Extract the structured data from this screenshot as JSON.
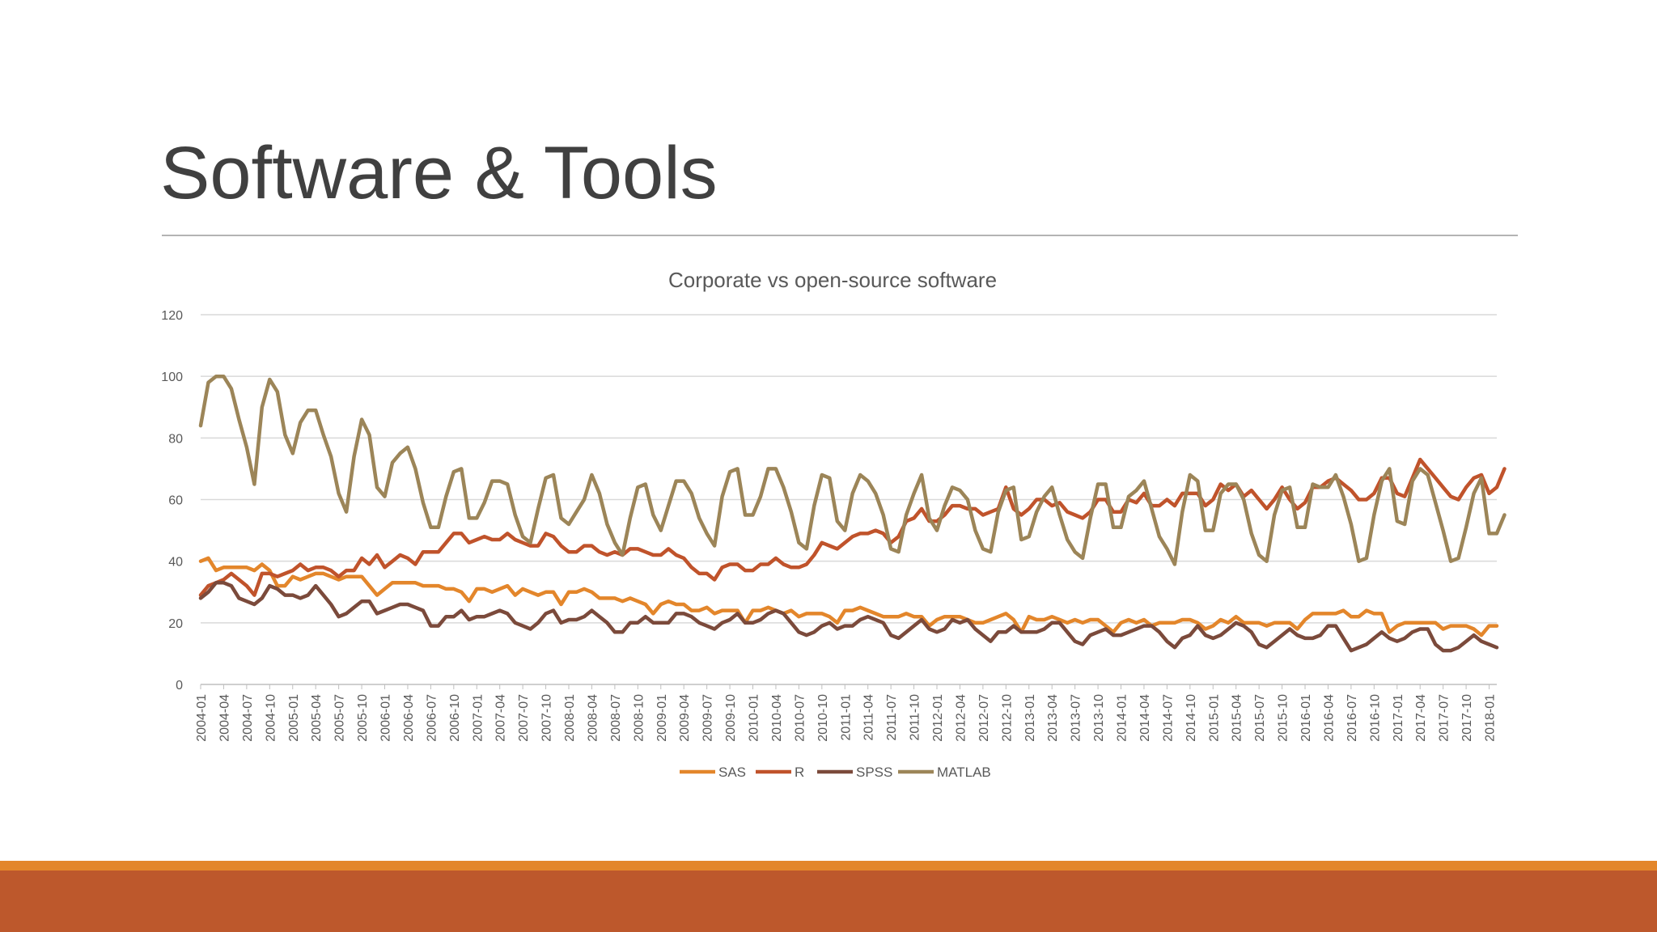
{
  "slide": {
    "title": "Software & Tools",
    "accent_light": "#E3862B",
    "accent_dark": "#BD582C"
  },
  "chart_data": {
    "type": "line",
    "title": "Corporate vs open-source software",
    "xlabel": "",
    "ylabel": "",
    "ylim": [
      0,
      120
    ],
    "yticks": [
      0,
      20,
      40,
      60,
      80,
      100,
      120
    ],
    "grid": true,
    "legend_position": "bottom",
    "x_start": "2004-01",
    "x_end": "2018-03",
    "x_tick_labels": [
      "2004-01",
      "2004-04",
      "2004-07",
      "2004-10",
      "2005-01",
      "2005-04",
      "2005-07",
      "2005-10",
      "2006-01",
      "2006-04",
      "2006-07",
      "2006-10",
      "2007-01",
      "2007-04",
      "2007-07",
      "2007-10",
      "2008-01",
      "2008-04",
      "2008-07",
      "2008-10",
      "2009-01",
      "2009-04",
      "2009-07",
      "2009-10",
      "2010-01",
      "2010-04",
      "2010-07",
      "2010-10",
      "2011-01",
      "2011-04",
      "2011-07",
      "2011-10",
      "2012-01",
      "2012-04",
      "2012-07",
      "2012-10",
      "2013-01",
      "2013-04",
      "2013-07",
      "2013-10",
      "2014-01",
      "2014-04",
      "2014-07",
      "2014-10",
      "2015-01",
      "2015-04",
      "2015-07",
      "2015-10",
      "2016-01",
      "2016-04",
      "2016-07",
      "2016-10",
      "2017-01",
      "2017-04",
      "2017-07",
      "2017-10",
      "2018-01"
    ],
    "series": [
      {
        "name": "SAS",
        "color": "#E3862B",
        "values": [
          40,
          41,
          37,
          38,
          38,
          38,
          38,
          37,
          39,
          37,
          32,
          32,
          35,
          34,
          35,
          36,
          36,
          35,
          34,
          35,
          35,
          35,
          32,
          29,
          31,
          33,
          33,
          33,
          33,
          32,
          32,
          32,
          31,
          31,
          30,
          27,
          31,
          31,
          30,
          31,
          32,
          29,
          31,
          30,
          29,
          30,
          30,
          26,
          30,
          30,
          31,
          30,
          28,
          28,
          28,
          27,
          28,
          27,
          26,
          23,
          26,
          27,
          26,
          26,
          24,
          24,
          25,
          23,
          24,
          24,
          24,
          20,
          24,
          24,
          25,
          24,
          23,
          24,
          22,
          23,
          23,
          23,
          22,
          20,
          24,
          24,
          25,
          24,
          23,
          22,
          22,
          22,
          23,
          22,
          22,
          19,
          21,
          22,
          22,
          22,
          21,
          20,
          20,
          21,
          22,
          23,
          21,
          17,
          22,
          21,
          21,
          22,
          21,
          20,
          21,
          20,
          21,
          21,
          19,
          17,
          20,
          21,
          20,
          21,
          19,
          20,
          20,
          20,
          21,
          21,
          20,
          18,
          19,
          21,
          20,
          22,
          20,
          20,
          20,
          19,
          20,
          20,
          20,
          18,
          21,
          23,
          23,
          23,
          23,
          24,
          22,
          22,
          24,
          23,
          23,
          17,
          19,
          20,
          20,
          20,
          20,
          20,
          18,
          19,
          19,
          19,
          18,
          16,
          19,
          19
        ]
      },
      {
        "name": "R",
        "color": "#C0532B",
        "values": [
          29,
          32,
          33,
          34,
          36,
          34,
          32,
          29,
          36,
          36,
          35,
          36,
          37,
          39,
          37,
          38,
          38,
          37,
          35,
          37,
          37,
          41,
          39,
          42,
          38,
          40,
          42,
          41,
          39,
          43,
          43,
          43,
          46,
          49,
          49,
          46,
          47,
          48,
          47,
          47,
          49,
          47,
          46,
          45,
          45,
          49,
          48,
          45,
          43,
          43,
          45,
          45,
          43,
          42,
          43,
          42,
          44,
          44,
          43,
          42,
          42,
          44,
          42,
          41,
          38,
          36,
          36,
          34,
          38,
          39,
          39,
          37,
          37,
          39,
          39,
          41,
          39,
          38,
          38,
          39,
          42,
          46,
          45,
          44,
          46,
          48,
          49,
          49,
          50,
          49,
          46,
          48,
          53,
          54,
          57,
          53,
          53,
          55,
          58,
          58,
          57,
          57,
          55,
          56,
          57,
          64,
          57,
          55,
          57,
          60,
          60,
          58,
          59,
          56,
          55,
          54,
          56,
          60,
          60,
          56,
          56,
          60,
          59,
          62,
          58,
          58,
          60,
          58,
          62,
          62,
          62,
          58,
          60,
          65,
          63,
          65,
          61,
          63,
          60,
          57,
          60,
          64,
          60,
          57,
          59,
          64,
          64,
          66,
          67,
          65,
          63,
          60,
          60,
          62,
          67,
          67,
          62,
          61,
          67,
          73,
          70,
          67,
          64,
          61,
          60,
          64,
          67,
          68,
          62,
          64,
          70
        ]
      },
      {
        "name": "SPSS",
        "color": "#7B4A3B",
        "values": [
          28,
          30,
          33,
          33,
          32,
          28,
          27,
          26,
          28,
          32,
          31,
          29,
          29,
          28,
          29,
          32,
          29,
          26,
          22,
          23,
          25,
          27,
          27,
          23,
          24,
          25,
          26,
          26,
          25,
          24,
          19,
          19,
          22,
          22,
          24,
          21,
          22,
          22,
          23,
          24,
          23,
          20,
          19,
          18,
          20,
          23,
          24,
          20,
          21,
          21,
          22,
          24,
          22,
          20,
          17,
          17,
          20,
          20,
          22,
          20,
          20,
          20,
          23,
          23,
          22,
          20,
          19,
          18,
          20,
          21,
          23,
          20,
          20,
          21,
          23,
          24,
          23,
          20,
          17,
          16,
          17,
          19,
          20,
          18,
          19,
          19,
          21,
          22,
          21,
          20,
          16,
          15,
          17,
          19,
          21,
          18,
          17,
          18,
          21,
          20,
          21,
          18,
          16,
          14,
          17,
          17,
          19,
          17,
          17,
          17,
          18,
          20,
          20,
          17,
          14,
          13,
          16,
          17,
          18,
          16,
          16,
          17,
          18,
          19,
          19,
          17,
          14,
          12,
          15,
          16,
          19,
          16,
          15,
          16,
          18,
          20,
          19,
          17,
          13,
          12,
          14,
          16,
          18,
          16,
          15,
          15,
          16,
          19,
          19,
          15,
          11,
          12,
          13,
          15,
          17,
          15,
          14,
          15,
          17,
          18,
          18,
          13,
          11,
          11,
          12,
          14,
          16,
          14,
          13,
          12
        ]
      },
      {
        "name": "MATLAB",
        "color": "#9C8558",
        "values": [
          84,
          98,
          100,
          100,
          96,
          86,
          77,
          65,
          90,
          99,
          95,
          81,
          75,
          85,
          89,
          89,
          81,
          74,
          62,
          56,
          74,
          86,
          81,
          64,
          61,
          72,
          75,
          77,
          70,
          59,
          51,
          51,
          61,
          69,
          70,
          54,
          54,
          59,
          66,
          66,
          65,
          55,
          48,
          46,
          57,
          67,
          68,
          54,
          52,
          56,
          60,
          68,
          62,
          52,
          46,
          42,
          54,
          64,
          65,
          55,
          50,
          58,
          66,
          66,
          62,
          54,
          49,
          45,
          61,
          69,
          70,
          55,
          55,
          61,
          70,
          70,
          64,
          56,
          46,
          44,
          58,
          68,
          67,
          53,
          50,
          62,
          68,
          66,
          62,
          55,
          44,
          43,
          55,
          62,
          68,
          54,
          50,
          58,
          64,
          63,
          60,
          50,
          44,
          43,
          56,
          63,
          64,
          47,
          48,
          56,
          61,
          64,
          55,
          47,
          43,
          41,
          54,
          65,
          65,
          51,
          51,
          61,
          63,
          66,
          57,
          48,
          44,
          39,
          56,
          68,
          66,
          50,
          50,
          62,
          65,
          65,
          60,
          49,
          42,
          40,
          55,
          63,
          64,
          51,
          51,
          65,
          64,
          64,
          68,
          61,
          52,
          40,
          41,
          55,
          66,
          70,
          53,
          52,
          66,
          70,
          68,
          59,
          50,
          40,
          41,
          51,
          62,
          67,
          49,
          49,
          55
        ]
      }
    ]
  }
}
